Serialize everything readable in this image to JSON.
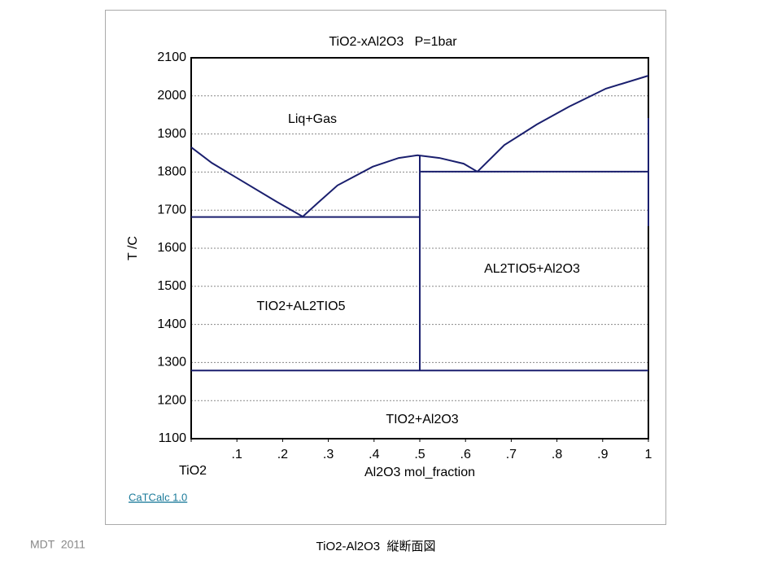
{
  "chart_data": {
    "type": "line",
    "title": "TiO2-xAl2O3   P=1bar",
    "x_label": "Al2O3 mol_fraction",
    "y_label": "T /C",
    "xlim": [
      0,
      1
    ],
    "ylim": [
      1100,
      2100
    ],
    "xticks": [
      {
        "value": 0,
        "label": "TiO2"
      },
      {
        "value": 0.1,
        "label": ".1"
      },
      {
        "value": 0.2,
        "label": ".2"
      },
      {
        "value": 0.3,
        "label": ".3"
      },
      {
        "value": 0.4,
        "label": ".4"
      },
      {
        "value": 0.5,
        "label": ".5"
      },
      {
        "value": 0.6,
        "label": ".6"
      },
      {
        "value": 0.7,
        "label": ".7"
      },
      {
        "value": 0.8,
        "label": ".8"
      },
      {
        "value": 0.9,
        "label": ".9"
      },
      1
    ],
    "yticks": [
      1100,
      1200,
      1300,
      1400,
      1500,
      1600,
      1700,
      1800,
      1900,
      2000,
      2100
    ],
    "grid": true,
    "series": [
      {
        "color": "#1a1f6e",
        "x": [
          0,
          0.045,
          0.098,
          0.187,
          0.244
        ],
        "values": [
          1865,
          1824,
          1786,
          1722,
          1683
        ]
      },
      {
        "color": "#1a1f6e",
        "x": [
          0.244,
          0.276,
          0.32,
          0.397,
          0.454,
          0.495,
          0.543,
          0.596,
          0.626
        ],
        "values": [
          1683,
          1718,
          1765,
          1814,
          1837,
          1844,
          1837,
          1822,
          1801
        ]
      },
      {
        "color": "#1a1f6e",
        "x": [
          0.626,
          0.685,
          0.756,
          0.827,
          0.907,
          1
        ],
        "values": [
          1801,
          1871,
          1925,
          1972,
          2019,
          2053
        ]
      },
      {
        "color": "#1a1f6e",
        "x": [
          0,
          0.5
        ],
        "values": [
          1682,
          1682
        ]
      },
      {
        "color": "#1a1f6e",
        "x": [
          0.5,
          1
        ],
        "values": [
          1801,
          1801
        ]
      },
      {
        "color": "#1a1f6e",
        "x": [
          0,
          1
        ],
        "values": [
          1279,
          1279
        ]
      },
      {
        "color": "#1a1f6e",
        "x": [
          0.5,
          0.5
        ],
        "values": [
          1279,
          1844
        ]
      },
      {
        "color": "#1a1f6e",
        "x": [
          1,
          1
        ],
        "values": [
          1658,
          1942
        ]
      }
    ],
    "annotations": [
      "Liq+Gas",
      "TIO2+AL2TIO5",
      "AL2TIO5+Al2O3",
      "TIO2+Al2O3"
    ]
  },
  "footer": {
    "link": "CaTCalc 1.0",
    "author": "MDT  2011",
    "caption": "TiO2-Al2O3  縦断面図"
  }
}
